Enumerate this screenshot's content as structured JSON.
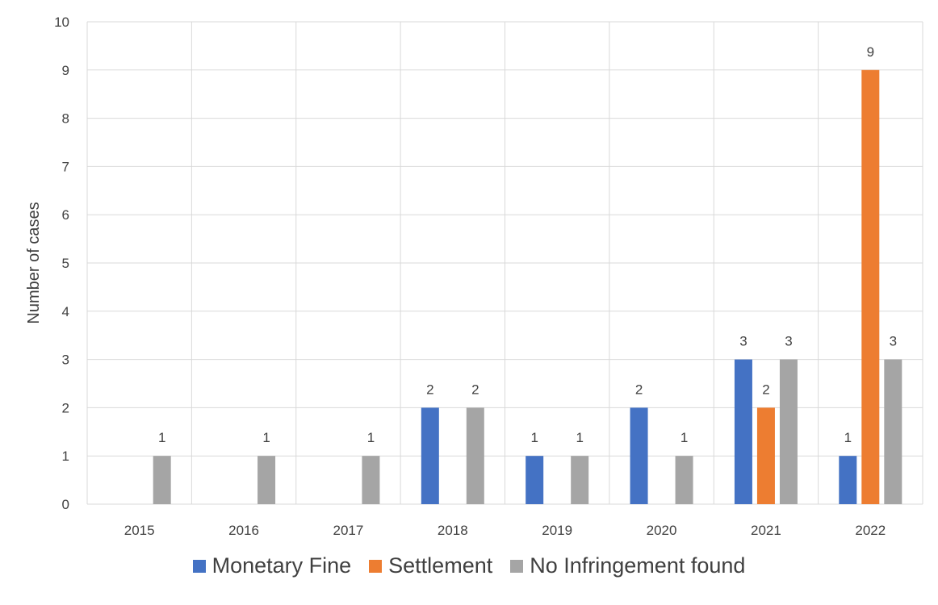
{
  "chart_data": {
    "type": "bar",
    "ylabel": "Number of cases",
    "xlabel": "",
    "ylim": [
      0,
      10
    ],
    "yticks": [
      0,
      1,
      2,
      3,
      4,
      5,
      6,
      7,
      8,
      9,
      10
    ],
    "grid": true,
    "legend_position": "bottom",
    "categories": [
      "2015",
      "2016",
      "2017",
      "2018",
      "2019",
      "2020",
      "2021",
      "2022"
    ],
    "series": [
      {
        "name": "Monetary Fine",
        "color": "#4472C4",
        "values": [
          0,
          0,
          0,
          2,
          1,
          2,
          3,
          1
        ]
      },
      {
        "name": "Settlement",
        "color": "#ED7D31",
        "values": [
          0,
          0,
          0,
          0,
          0,
          0,
          2,
          9
        ]
      },
      {
        "name": "No Infringement found",
        "color": "#A5A5A5",
        "values": [
          1,
          1,
          1,
          2,
          1,
          1,
          3,
          3
        ]
      }
    ]
  }
}
